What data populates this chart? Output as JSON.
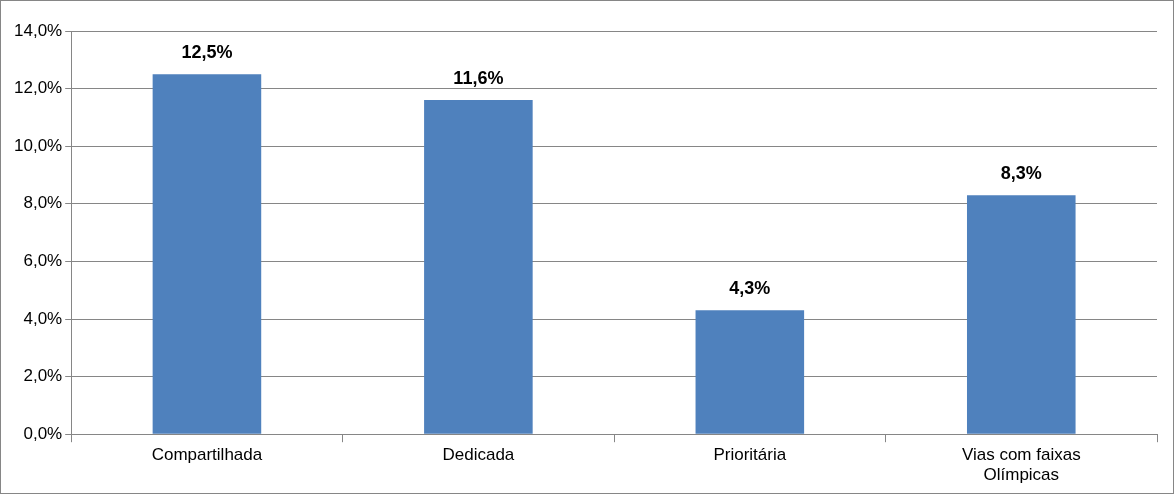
{
  "chart_data": {
    "type": "bar",
    "categories": [
      "Compartilhada",
      "Dedicada",
      "Prioritária",
      "Vias com faixas Olímpicas"
    ],
    "values": [
      12.5,
      11.6,
      4.3,
      8.3
    ],
    "color": "#4f81bd",
    "value_labels": [
      "12,5%",
      "11,6%",
      "4,3%",
      "8,3%"
    ],
    "ylim": [
      0,
      14
    ],
    "yticks": [
      {
        "value": 0,
        "label": "0,0%"
      },
      {
        "value": 2,
        "label": "2,0%"
      },
      {
        "value": 4,
        "label": "4,0%"
      },
      {
        "value": 6,
        "label": "6,0%"
      },
      {
        "value": 8,
        "label": "8,0%"
      },
      {
        "value": 10,
        "label": "10,0%"
      },
      {
        "value": 12,
        "label": "12,0%"
      },
      {
        "value": 14,
        "label": "14,0%"
      }
    ],
    "grid": "y",
    "legend": false
  }
}
